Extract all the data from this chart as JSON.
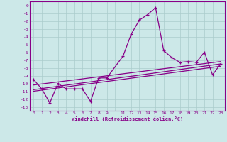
{
  "xlabel": "Windchill (Refroidissement éolien,°C)",
  "background_color": "#cce8e8",
  "grid_color": "#aacccc",
  "line_color": "#880088",
  "xlim": [
    -0.5,
    23.5
  ],
  "ylim": [
    -13.5,
    0.5
  ],
  "xtick_vals": [
    0,
    1,
    2,
    3,
    4,
    5,
    6,
    7,
    8,
    9,
    11,
    12,
    13,
    14,
    15,
    16,
    17,
    18,
    19,
    20,
    21,
    22,
    23
  ],
  "ytick_vals": [
    0,
    -1,
    -2,
    -3,
    -4,
    -5,
    -6,
    -7,
    -8,
    -9,
    -10,
    -11,
    -12,
    -13
  ],
  "main_x": [
    0,
    1,
    2,
    3,
    4,
    5,
    6,
    7,
    8,
    9,
    11,
    12,
    13,
    14,
    15,
    16,
    17,
    18,
    19,
    20,
    21,
    22,
    23
  ],
  "main_y": [
    -9.5,
    -10.7,
    -12.5,
    -10.0,
    -10.7,
    -10.7,
    -10.7,
    -12.3,
    -9.3,
    -9.3,
    -6.5,
    -3.7,
    -1.9,
    -1.2,
    -0.3,
    -5.8,
    -6.7,
    -7.3,
    -7.2,
    -7.3,
    -6.0,
    -8.9,
    -7.5
  ],
  "line2_x": [
    0,
    23
  ],
  "line2_y": [
    -10.2,
    -7.2
  ],
  "line3_x": [
    0,
    23
  ],
  "line3_y": [
    -10.8,
    -7.5
  ],
  "line4_x": [
    0,
    23
  ],
  "line4_y": [
    -11.0,
    -7.8
  ]
}
